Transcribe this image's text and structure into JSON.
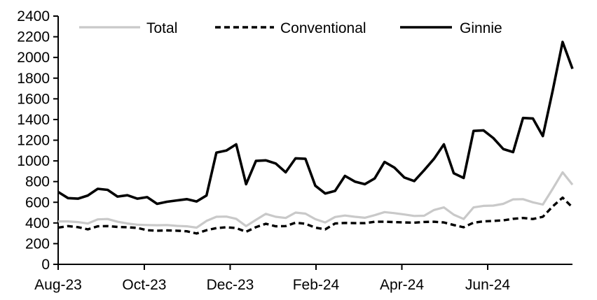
{
  "chart_data": {
    "type": "line",
    "title": "",
    "xlabel": "",
    "ylabel": "",
    "grid": false,
    "legend_position": "top",
    "x_unit": "weekly",
    "x_range_text": "Aug-23 to Aug-24",
    "ylim": [
      0,
      2400
    ],
    "y_tick_step": 200,
    "y_tick_labels": [
      "0",
      "200",
      "400",
      "600",
      "800",
      "1000",
      "1200",
      "1400",
      "1600",
      "1800",
      "2000",
      "2200",
      "2400"
    ],
    "x_tick_labels": [
      "Aug-23",
      "Oct-23",
      "Dec-23",
      "Feb-24",
      "Apr-24",
      "Jun-24"
    ],
    "x_tick_week_positions": [
      0,
      8.71,
      17.39,
      26.07,
      34.75,
      43.43
    ],
    "n_points": 53,
    "series": [
      {
        "name": "Total",
        "color": "#c9c9c9",
        "style": "solid",
        "values": [
          415,
          415,
          408,
          395,
          435,
          438,
          412,
          395,
          383,
          380,
          378,
          380,
          372,
          368,
          355,
          420,
          460,
          462,
          440,
          370,
          430,
          488,
          460,
          448,
          500,
          490,
          437,
          405,
          458,
          472,
          460,
          450,
          475,
          505,
          495,
          482,
          468,
          470,
          525,
          550,
          480,
          438,
          550,
          565,
          568,
          585,
          628,
          630,
          600,
          578,
          730,
          890,
          770
        ]
      },
      {
        "name": "Conventional",
        "color": "#000000",
        "style": "dashed",
        "values": [
          355,
          370,
          360,
          338,
          368,
          370,
          362,
          358,
          352,
          330,
          325,
          328,
          325,
          320,
          298,
          330,
          350,
          358,
          350,
          315,
          360,
          392,
          368,
          370,
          403,
          392,
          355,
          338,
          395,
          400,
          398,
          398,
          412,
          412,
          408,
          405,
          403,
          410,
          412,
          405,
          380,
          358,
          403,
          415,
          420,
          425,
          440,
          448,
          438,
          460,
          560,
          645,
          550
        ]
      },
      {
        "name": "Ginnie",
        "color": "#000000",
        "style": "solid",
        "values": [
          700,
          640,
          635,
          665,
          730,
          720,
          655,
          668,
          635,
          650,
          585,
          605,
          618,
          630,
          608,
          665,
          1080,
          1100,
          1160,
          775,
          1000,
          1005,
          975,
          890,
          1025,
          1020,
          760,
          685,
          710,
          855,
          800,
          775,
          830,
          990,
          935,
          840,
          805,
          910,
          1020,
          1160,
          880,
          835,
          1290,
          1295,
          1220,
          1115,
          1085,
          1415,
          1410,
          1240,
          1680,
          2150,
          1890
        ]
      }
    ],
    "legend": {
      "items": [
        "Total",
        "Conventional",
        "Ginnie"
      ]
    }
  }
}
